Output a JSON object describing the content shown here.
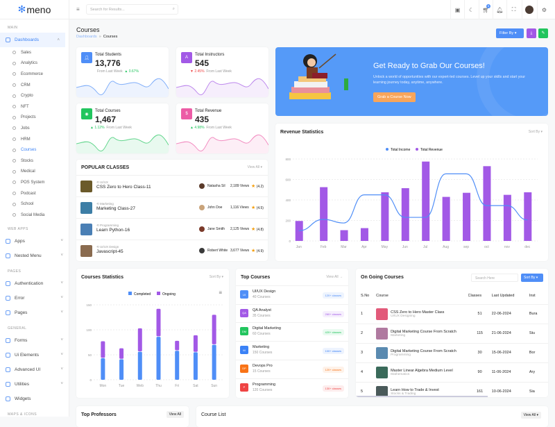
{
  "brand": {
    "name": "meno"
  },
  "sidebar": {
    "sections": [
      "MAIN",
      "WEB APPS",
      "PAGES",
      "GENERAL",
      "MAPS & ICONS"
    ],
    "dashboards": "Dashboards",
    "sub_items": [
      "Sales",
      "Analytics",
      "Ecommerce",
      "CRM",
      "Crypto",
      "NFT",
      "Projects",
      "Jobs",
      "HRM",
      "Courses",
      "Stocks",
      "Medical",
      "POS System",
      "Podcast",
      "School",
      "Social Media"
    ],
    "active_sub": "Courses",
    "web_apps": [
      "Apps",
      "Nested Menu"
    ],
    "pages": [
      "Authentication",
      "Error",
      "Pages"
    ],
    "general": [
      "Forms",
      "Ui Elements",
      "Advanced UI",
      "Utilities",
      "Widgets"
    ]
  },
  "header": {
    "search_placeholder": "Search for Results...",
    "cart_count": "5"
  },
  "page": {
    "title": "Courses",
    "breadcrumb": [
      "Dashboards",
      "Courses"
    ],
    "filter_label": "Filter By"
  },
  "stats": [
    {
      "label": "Total Students",
      "value": "13,776",
      "change": "0.67%",
      "direction": "up",
      "note": "From Last Week",
      "color": "#4f8ef7"
    },
    {
      "label": "Total Instructors",
      "value": "545",
      "change": "2.45%",
      "direction": "down",
      "note": "From Last Week",
      "color": "#a259e6"
    },
    {
      "label": "Total Courses",
      "value": "1,467",
      "change": "1.12%",
      "direction": "up",
      "note": "From Last Week",
      "color": "#22c55e"
    },
    {
      "label": "Total Revenue",
      "value": "435",
      "change": "4.98%",
      "direction": "up",
      "note": "From Last Week",
      "color": "#ec5ca6"
    }
  ],
  "banner": {
    "title": "Get Ready to Grab Our Courses!",
    "text": "Unlock a world of opportunities with our expert-led courses. Level up your skills and start your learning journey today, anytime, anywhere.",
    "button": "Grab a Course Now"
  },
  "popular": {
    "title": "POPULAR CLASSES",
    "view_all": "View All",
    "items": [
      {
        "category": "UI/UX",
        "title": "CSS Zero to Hero Class-11",
        "author": "Natasha Sil",
        "views": "2,189 Views",
        "rating": "(4.2)"
      },
      {
        "category": "Marketing",
        "title": "Marketing Class-27",
        "author": "John Doe",
        "views": "1,116 Views",
        "rating": "(4.5)"
      },
      {
        "category": "Programming",
        "title": "Learn Python-16",
        "author": "Jane Smith",
        "views": "2,125 Views",
        "rating": "(4.8)"
      },
      {
        "category": "UI/UX Design",
        "title": "Javascript-45",
        "author": "Robert White",
        "views": "3,677 Views",
        "rating": "(4.9)"
      }
    ]
  },
  "chart_data": [
    {
      "type": "bar",
      "title": "Revenue Statistics",
      "sort_label": "Sort By",
      "categories": [
        "Jan",
        "Feb",
        "Mar",
        "Apr",
        "May",
        "Jun",
        "Jul",
        "Aug",
        "sep",
        "oct",
        "nov",
        "dec"
      ],
      "series": [
        {
          "name": "Total Income",
          "type": "line",
          "color": "#4f8ef7",
          "values": [
            100,
            210,
            175,
            450,
            450,
            230,
            230,
            655,
            655,
            345,
            345,
            205
          ]
        },
        {
          "name": "Total Revenue",
          "type": "bar",
          "color": "#a259e6",
          "values": [
            195,
            525,
            105,
            125,
            475,
            515,
            775,
            430,
            470,
            730,
            450,
            475
          ]
        }
      ],
      "ylim": [
        0,
        800
      ],
      "yticks": [
        0,
        200,
        400,
        600,
        800
      ],
      "legend": "top",
      "grid": true
    },
    {
      "type": "bar",
      "stacked": true,
      "title": "Courses Statistics",
      "sort_label": "Sort By",
      "categories": [
        "Mon",
        "Tue",
        "Web",
        "Thu",
        "Fri",
        "Sat",
        "Sun"
      ],
      "series": [
        {
          "name": "Completed",
          "color": "#4f8ef7",
          "values": [
            43,
            41,
            56,
            86,
            58,
            55,
            70
          ]
        },
        {
          "name": "Ongoing",
          "color": "#a259e6",
          "values": [
            34,
            22,
            47,
            56,
            20,
            34,
            60
          ]
        }
      ],
      "ylim": [
        0,
        150
      ],
      "yticks": [
        0,
        50,
        100,
        150
      ],
      "legend": "top",
      "grid": true
    }
  ],
  "top_courses": {
    "title": "Top Courses",
    "view_all": "View All",
    "items": [
      {
        "abbr": "UI",
        "name": "UI/UX Design",
        "count": "40 Courses",
        "classes": "120+ classes",
        "color": "#4f8ef7"
      },
      {
        "abbr": "QA",
        "name": "QA Analyst",
        "count": "35 Courses",
        "classes": "260+ classes",
        "color": "#a259e6"
      },
      {
        "abbr": "DM",
        "name": "Digital Marketing",
        "count": "60 Courses",
        "classes": "420+ classes",
        "color": "#22c55e"
      },
      {
        "abbr": "M",
        "name": "Marketing",
        "count": "150 Courses",
        "classes": "100+ classes",
        "color": "#3b82f6"
      },
      {
        "abbr": "DP",
        "name": "Devops Pro",
        "count": "15 Courses",
        "classes": "120+ classes",
        "color": "#f97316"
      },
      {
        "abbr": "P",
        "name": "Programming",
        "count": "120 Courses",
        "classes": "130+ classes",
        "color": "#ef4444"
      }
    ]
  },
  "ongoing": {
    "title": "On Going Courses",
    "search_placeholder": "Search Here",
    "sort": "Sort By",
    "columns": [
      "S.No",
      "Course",
      "Classes",
      "Last Updated",
      "Inst"
    ],
    "rows": [
      {
        "no": "1",
        "course": "CSS Zero to Hero Master Class",
        "cat": "UI/UX Designing",
        "classes": "51",
        "updated": "22-06-2024",
        "inst": "Bura"
      },
      {
        "no": "2",
        "course": "Digital Marketing Course From Scratch",
        "cat": "Marketing",
        "classes": "115",
        "updated": "21-06-2024",
        "inst": "Stu"
      },
      {
        "no": "3",
        "course": "Digital Marketing Course From Scratch",
        "cat": "Programming",
        "classes": "30",
        "updated": "15-06-2024",
        "inst": "Bor"
      },
      {
        "no": "4",
        "course": "Master Linear Algebra Medium Level",
        "cat": "Mathematics",
        "classes": "90",
        "updated": "11-06-2024",
        "inst": "Ary"
      },
      {
        "no": "5",
        "course": "Learn How to Trade & Invest",
        "cat": "Stocks & Trading",
        "classes": "161",
        "updated": "10-06-2024",
        "inst": "Sia"
      }
    ]
  },
  "bottom": {
    "professors_title": "Top Professors",
    "professors_view": "View All",
    "course_list_title": "Course List",
    "course_list_view": "View All"
  }
}
